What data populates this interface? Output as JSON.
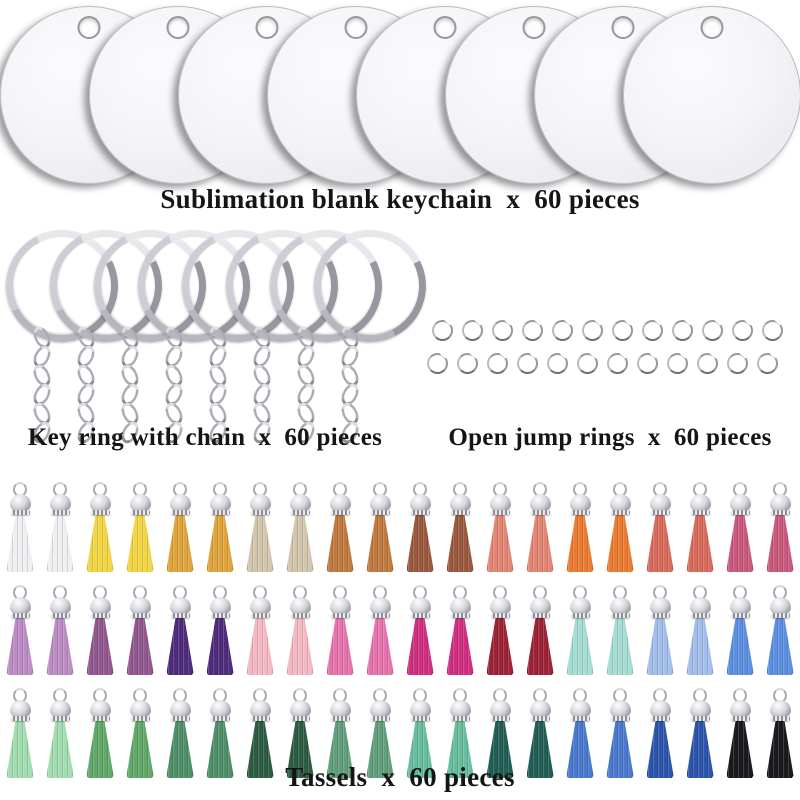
{
  "labels": {
    "discs": "Sublimation blank keychain  x  60 pieces",
    "keyrings": "Key ring with chain  x  60 pieces",
    "jumprings": "Open jump rings  x  60 pieces",
    "tassels": "Tassels  x  60 pieces"
  },
  "counts": {
    "discs_shown": 8,
    "keyrings_shown": 8,
    "chain_links_per_keyring": 6,
    "jumpring_rows": 2,
    "jumprings_per_row": 12,
    "tassel_rows": 3,
    "tassels_per_row": 20
  },
  "colors": {
    "background": "#ffffff",
    "text": "#151515",
    "disc_fill": "#f2f2f6",
    "silver_metal": "#b5b6be"
  },
  "tassel_rows": [
    [
      "#efeff2",
      "#efeff2",
      "#f1d544",
      "#f1d544",
      "#dfa53d",
      "#dfa53d",
      "#d2c6ad",
      "#d2c6ad",
      "#c0793f",
      "#c0793f",
      "#9b5a40",
      "#9b5a40",
      "#e28674",
      "#e28674",
      "#eb7b31",
      "#eb7b31",
      "#d96b5d",
      "#d96b5d",
      "#ca5a7b",
      "#ca5a7b"
    ],
    [
      "#bd8cc5",
      "#bd8cc5",
      "#90588e",
      "#90588e",
      "#4f2c7c",
      "#4f2c7c",
      "#f3b9c3",
      "#f3b9c3",
      "#e673ab",
      "#e673ab",
      "#ce2f80",
      "#ce2f80",
      "#9d2336",
      "#9d2336",
      "#a6dcd4",
      "#a6dcd4",
      "#a3bfe9",
      "#a3bfe9",
      "#5c8fe0",
      "#5c8fe0"
    ],
    [
      "#a2dcb1",
      "#a2dcb1",
      "#60a968",
      "#60a968",
      "#4e8f67",
      "#4e8f67",
      "#2d5c43",
      "#2d5c43",
      "#619e7c",
      "#619e7c",
      "#67bd9c",
      "#67bd9c",
      "#215e55",
      "#215e55",
      "#4a79cd",
      "#4a79cd",
      "#2d55ab",
      "#2d55ab",
      "#1b1b1f",
      "#1b1b1f"
    ]
  ]
}
